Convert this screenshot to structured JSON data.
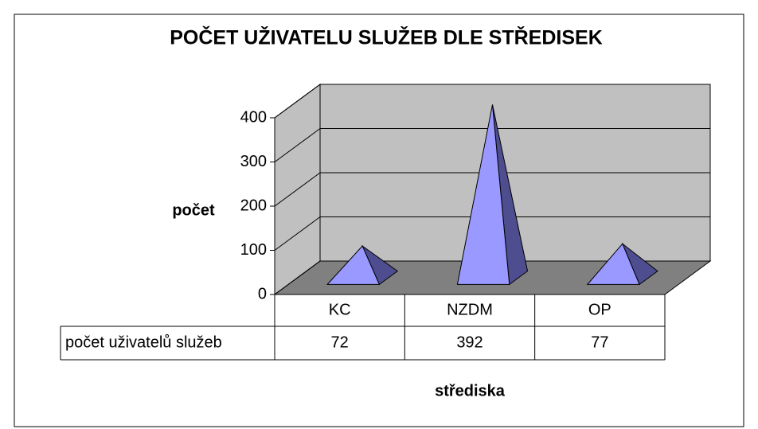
{
  "chart_data": {
    "type": "pyramid",
    "title": "POČET UŽIVATELU SLUŽEB DLE STŘEDISEK",
    "y_label": "počet",
    "x_label": "střediska",
    "categories": [
      "KC",
      "NZDM",
      "OP"
    ],
    "series": [
      {
        "name": "počet uživatelů služeb",
        "color": "#9999ff",
        "values": [
          72,
          392,
          77
        ]
      }
    ],
    "ylim": [
      0,
      400
    ],
    "yticks": [
      0,
      100,
      200,
      300,
      400
    ],
    "grid": true
  }
}
